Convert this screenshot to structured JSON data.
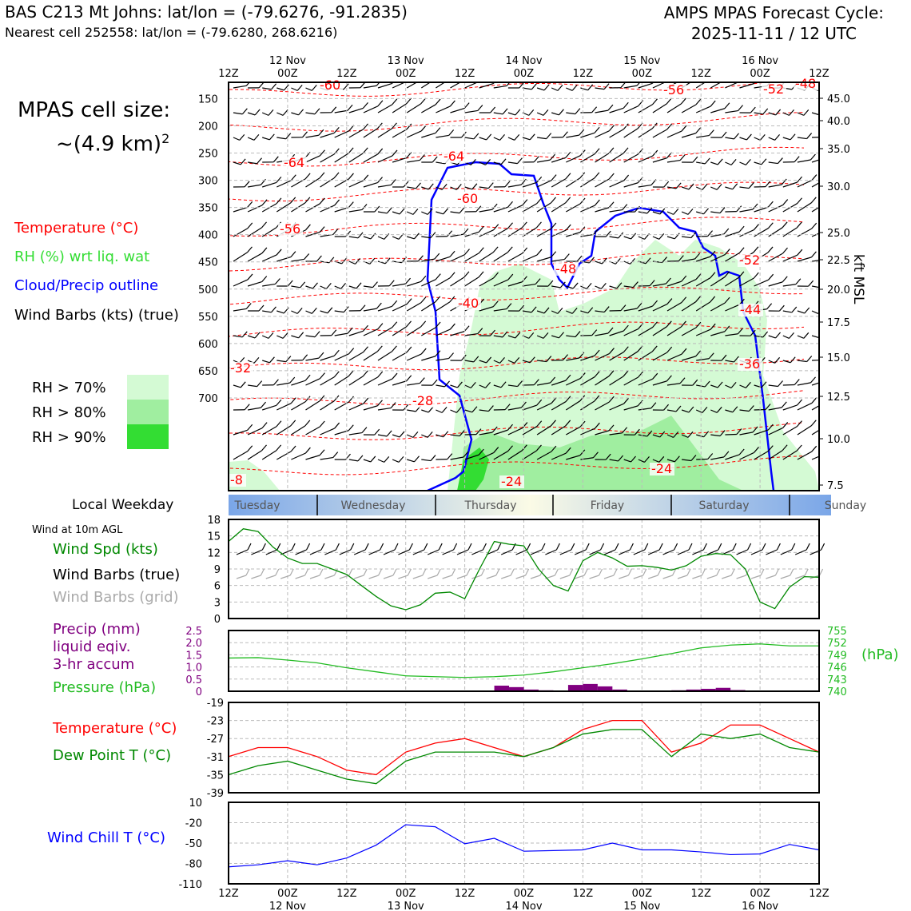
{
  "header": {
    "station_line": "BAS C213 Mt Johns: lat/lon = (-79.6276, -91.2835)",
    "cell_line": "Nearest cell 252558: lat/lon = (-79.6280, 268.6216)",
    "forecast_title": "AMPS MPAS Forecast Cycle:",
    "forecast_cycle": "2025-11-11 / 12 UTC"
  },
  "cell_size": {
    "label": "MPAS cell size:",
    "value": "~(4.9 km)",
    "exp": "2"
  },
  "legend": {
    "temperature": "Temperature (°C)",
    "rh": "RH (%) wrt liq. wat",
    "cloud": "Cloud/Precip outline",
    "barbs": "Wind Barbs (kts) (true)",
    "rh70": "RH > 70%",
    "rh80": "RH > 80%",
    "rh90": "RH > 90%"
  },
  "colors": {
    "temperature": "#ff0000",
    "rh_text": "#33dd33",
    "cloud": "#0000ff",
    "rh70": "#d4fad4",
    "rh80": "#a0eea0",
    "rh90": "#33dd33",
    "speed": "#008800",
    "precip": "#800080",
    "pressure": "#22bb22",
    "dew": "#008800",
    "chill": "#0000ff",
    "grid_barb": "#aaaaaa"
  },
  "time_axis": {
    "ticks": [
      "12Z",
      "00Z",
      "12Z",
      "00Z",
      "12Z",
      "00Z",
      "12Z",
      "00Z",
      "12Z",
      "00Z",
      "12Z"
    ],
    "dates": [
      "12 Nov",
      "13 Nov",
      "14 Nov",
      "15 Nov",
      "16 Nov"
    ]
  },
  "weekday": {
    "label": "Local Weekday",
    "days": [
      "Tuesday",
      "Wednesday",
      "Thursday",
      "Friday",
      "Saturday",
      "Sunday"
    ]
  },
  "wind10": {
    "caption": "Wind at 10m AGL",
    "speed_label": "Wind Spd (kts)",
    "barbs_true": "Wind Barbs (true)",
    "barbs_grid": "Wind Barbs (grid)"
  },
  "precip_panel": {
    "precip_label_1": "Precip (mm)",
    "precip_label_2": "liquid eqiv.",
    "precip_label_3": "3-hr accum",
    "pressure_label": "Pressure (hPa)",
    "pressure_unit": "(hPa)"
  },
  "temp_panel": {
    "temp_label": "Temperature (°C)",
    "dew_label": "Dew Point T (°C)"
  },
  "chill_panel": {
    "label": "Wind Chill T (°C)"
  },
  "chart_data": [
    {
      "type": "cross-section",
      "title": "",
      "x_hours": [
        0,
        120
      ],
      "pressure_ticks": [
        150,
        200,
        250,
        300,
        350,
        400,
        450,
        500,
        550,
        600,
        650,
        700
      ],
      "kft_ticks": [
        "45.0",
        "40.0",
        "35.0",
        "30.0",
        "25.0",
        "22.5",
        "20.0",
        "17.5",
        "15.0",
        "12.5",
        "10.0",
        "7.5"
      ],
      "ylabel_right": "kft MSL",
      "temperature_labels": [
        "-60",
        "-56",
        "-52",
        "-48",
        "-64",
        "-64",
        "-60",
        "-56",
        "-52",
        "-48",
        "-44",
        "-40",
        "-36",
        "-32",
        "-28",
        "-24",
        "-24",
        "-8"
      ],
      "temp_label_values": [
        -60,
        -56,
        -52,
        -48,
        -64,
        -64,
        -60,
        -56,
        -52,
        -48,
        -44,
        -40,
        -36,
        -32,
        -28,
        -24,
        -24,
        -8
      ]
    },
    {
      "type": "line",
      "name": "Wind Spd (kts)",
      "yticks": [
        "0",
        "3",
        "6",
        "9",
        "12",
        "15",
        "18"
      ],
      "ylim": [
        0,
        18
      ],
      "x_hours": [
        0,
        3,
        6,
        9,
        12,
        15,
        18,
        21,
        24,
        27,
        30,
        33,
        36,
        39,
        42,
        45,
        48,
        51,
        54,
        57,
        60,
        63,
        66,
        69,
        72,
        75,
        78,
        81,
        84,
        87,
        90,
        93,
        96,
        99,
        102,
        105,
        108,
        111,
        114,
        117,
        120
      ],
      "values": [
        14,
        16.3,
        15.8,
        13,
        11,
        10,
        10,
        9,
        8,
        6,
        4,
        2.3,
        1.6,
        2.5,
        4.6,
        4.8,
        3.6,
        9,
        14,
        13.5,
        13.2,
        9,
        6,
        5,
        10.5,
        12,
        11,
        9.5,
        9.6,
        9.3,
        8.8,
        9.6,
        11.3,
        11.8,
        11.6,
        9,
        3,
        1.8,
        5.7,
        7.6,
        7.5
      ]
    },
    {
      "type": "bar+line",
      "precip_yticks": [
        "0",
        "0.5",
        "1.0",
        "1.5",
        "2.0",
        "2.5"
      ],
      "precip_ylim": [
        0,
        2.5
      ],
      "pressure_yticks": [
        "740",
        "743",
        "746",
        "749",
        "752",
        "755"
      ],
      "pressure_ylim": [
        740,
        755
      ],
      "precip_bars": [
        {
          "start": 54,
          "end": 57,
          "mm": 0.23
        },
        {
          "start": 57,
          "end": 60,
          "mm": 0.17
        },
        {
          "start": 60,
          "end": 63,
          "mm": 0.07
        },
        {
          "start": 63,
          "end": 66,
          "mm": 0.04
        },
        {
          "start": 69,
          "end": 72,
          "mm": 0.26
        },
        {
          "start": 72,
          "end": 75,
          "mm": 0.3
        },
        {
          "start": 75,
          "end": 78,
          "mm": 0.2
        },
        {
          "start": 78,
          "end": 81,
          "mm": 0.07
        },
        {
          "start": 90,
          "end": 93,
          "mm": 0.04
        },
        {
          "start": 93,
          "end": 96,
          "mm": 0.07
        },
        {
          "start": 96,
          "end": 99,
          "mm": 0.1
        },
        {
          "start": 99,
          "end": 102,
          "mm": 0.14
        },
        {
          "start": 102,
          "end": 105,
          "mm": 0.05
        }
      ],
      "pressure_x": [
        0,
        6,
        12,
        18,
        24,
        30,
        36,
        42,
        48,
        54,
        60,
        66,
        72,
        78,
        84,
        90,
        96,
        102,
        108,
        114,
        120
      ],
      "pressure_values": [
        748.2,
        748.3,
        747.7,
        747.0,
        745.8,
        744.8,
        743.8,
        743.6,
        743.4,
        743.6,
        744.0,
        744.8,
        745.8,
        746.8,
        748.0,
        749.3,
        750.7,
        751.4,
        751.7,
        751.2,
        751.2
      ]
    },
    {
      "type": "line",
      "yticks": [
        "-39",
        "-35",
        "-31",
        "-27",
        "-23",
        "-19"
      ],
      "ylim": [
        -39,
        -19
      ],
      "x_hours": [
        0,
        6,
        12,
        18,
        24,
        30,
        36,
        42,
        48,
        54,
        60,
        66,
        72,
        78,
        84,
        90,
        96,
        102,
        108,
        114,
        120
      ],
      "series": [
        {
          "name": "Temperature (°C)",
          "values": [
            -31,
            -29,
            -29,
            -31,
            -34,
            -35,
            -30,
            -28,
            -27,
            -29,
            -31,
            -29,
            -25,
            -23,
            -23,
            -30,
            -28,
            -24,
            -24,
            -27,
            -30
          ]
        },
        {
          "name": "Dew Point T (°C)",
          "values": [
            -35,
            -33,
            -32,
            -34,
            -36,
            -37,
            -32,
            -30,
            -30,
            -30,
            -31,
            -29,
            -26,
            -25,
            -25,
            -31,
            -26,
            -27,
            -26,
            -29,
            -30
          ]
        }
      ]
    },
    {
      "type": "line",
      "name": "Wind Chill T (°C)",
      "yticks": [
        "-110",
        "-80",
        "-50",
        "-20",
        "10"
      ],
      "ylim": [
        -110,
        10
      ],
      "x_hours": [
        0,
        6,
        12,
        18,
        24,
        30,
        36,
        42,
        48,
        54,
        60,
        66,
        72,
        78,
        84,
        90,
        96,
        102,
        108,
        114,
        120
      ],
      "values": [
        -85,
        -82,
        -76,
        -82,
        -72,
        -53,
        -23,
        -26,
        -51,
        -43,
        -62,
        -61,
        -60,
        -50,
        -60,
        -60,
        -63,
        -67,
        -66,
        -52,
        -60
      ]
    }
  ]
}
